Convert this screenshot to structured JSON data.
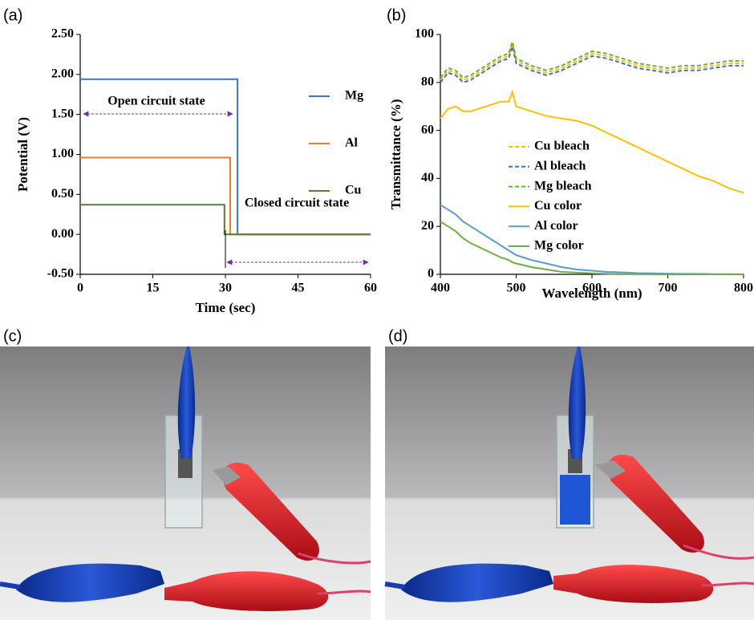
{
  "chart_data": [
    {
      "type": "line",
      "panel_label": "(a)",
      "x_label": "Time (sec)",
      "y_label": "Potential (V)",
      "xlim": [
        0,
        60
      ],
      "xticks": [
        0,
        15,
        30,
        45,
        60
      ],
      "ylim": [
        -0.5,
        2.5
      ],
      "yticks": [
        {
          "value": -0.5,
          "label": "-0.50"
        },
        {
          "value": 0,
          "label": "0.00"
        },
        {
          "value": 0.5,
          "label": "0.50"
        },
        {
          "value": 1,
          "label": "1.00"
        },
        {
          "value": 1.5,
          "label": "1.50"
        },
        {
          "value": 2,
          "label": "2.00"
        },
        {
          "value": 2.5,
          "label": "2.50"
        }
      ],
      "legend": "right",
      "annotations": [
        "Open circuit state",
        "Closed circuit state"
      ],
      "series": [
        {
          "name": "Mg",
          "color": "#4472c4",
          "x": [
            0,
            32.5,
            32.5,
            60
          ],
          "values": [
            1.94,
            1.94,
            0,
            0
          ]
        },
        {
          "name": "Al",
          "color": "#ed7d31",
          "x": [
            0,
            31,
            31,
            60
          ],
          "values": [
            0.96,
            0.96,
            0,
            0
          ]
        },
        {
          "name": "Cu",
          "color": "#548235",
          "x": [
            0,
            29.8,
            29.8,
            60
          ],
          "values": [
            0.37,
            0.37,
            0,
            0
          ]
        }
      ]
    },
    {
      "type": "line",
      "panel_label": "(b)",
      "x_label": "Wavelength (nm)",
      "y_label": "Transmittance  (%)",
      "xlim": [
        400,
        800
      ],
      "xticks": [
        400,
        500,
        600,
        700,
        800
      ],
      "ylim": [
        0,
        100
      ],
      "yticks": [
        0,
        20,
        40,
        60,
        80,
        100
      ],
      "legend": "left",
      "x": [
        400,
        410,
        420,
        430,
        440,
        460,
        480,
        490,
        495,
        500,
        520,
        540,
        560,
        580,
        600,
        620,
        640,
        660,
        680,
        700,
        720,
        740,
        760,
        780,
        800
      ],
      "series": [
        {
          "name": "Cu bleach",
          "color": "#ffc000",
          "style": "dashed",
          "values": [
            81,
            85,
            84,
            81,
            82,
            86,
            90,
            91,
            96,
            89,
            86,
            84,
            86,
            89,
            92,
            91,
            89,
            87,
            86,
            85,
            86,
            86,
            87,
            88,
            88
          ]
        },
        {
          "name": "Al bleach",
          "color": "#4472c4",
          "style": "dashed",
          "values": [
            80,
            84,
            83,
            80,
            81,
            85,
            89,
            90,
            95,
            88,
            85,
            83,
            85,
            88,
            91,
            90,
            88,
            86,
            85,
            84,
            85,
            85,
            86,
            87,
            87
          ]
        },
        {
          "name": "Mg bleach",
          "color": "#70ad47",
          "style": "dashed",
          "values": [
            82,
            86,
            85,
            82,
            83,
            87,
            91,
            92,
            97,
            90,
            87,
            85,
            87,
            90,
            93,
            92,
            90,
            88,
            87,
            86,
            87,
            87,
            88,
            89,
            89
          ]
        },
        {
          "name": "Cu color",
          "color": "#ffc000",
          "style": "solid",
          "values": [
            65,
            69,
            70,
            68,
            68,
            70,
            72,
            72,
            76,
            70,
            68,
            66,
            65,
            64,
            62,
            59,
            56,
            53,
            50,
            47,
            44,
            41,
            39,
            36,
            34
          ]
        },
        {
          "name": "Al color",
          "color": "#5b9bd5",
          "style": "solid",
          "values": [
            29,
            27,
            25,
            22,
            20,
            16,
            12,
            10,
            9,
            8,
            6,
            4.5,
            3,
            2,
            1.5,
            1,
            0.8,
            0.5,
            0.4,
            0.3,
            0.2,
            0.2,
            0.1,
            0.1,
            0
          ]
        },
        {
          "name": "Mg color",
          "color": "#70ad47",
          "style": "solid",
          "values": [
            22,
            20,
            18,
            15,
            13,
            10,
            7,
            6,
            5,
            4.5,
            3,
            2,
            1,
            0.7,
            0.4,
            0.2,
            0.1,
            0.1,
            0,
            0,
            0,
            0,
            0,
            0,
            0
          ]
        }
      ]
    }
  ],
  "photos": [
    {
      "panel_label": "(c)"
    },
    {
      "panel_label": "(d)"
    }
  ]
}
